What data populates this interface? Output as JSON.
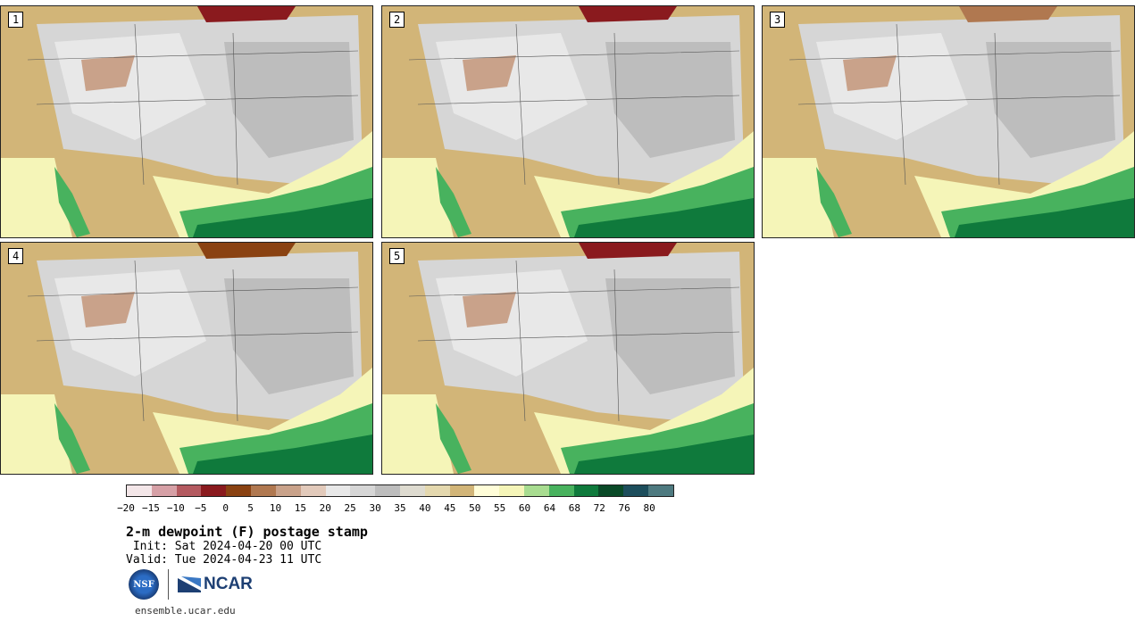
{
  "panels": [
    {
      "label": "1"
    },
    {
      "label": "2"
    },
    {
      "label": "3"
    },
    {
      "label": "4"
    },
    {
      "label": "5"
    }
  ],
  "colorbar": {
    "colors": [
      "#f3e6e8",
      "#d6a0a6",
      "#b45a60",
      "#8a1a1e",
      "#8a4212",
      "#b07850",
      "#c9a28a",
      "#e2cabb",
      "#e8e8e8",
      "#d6d6d6",
      "#bdbdbd",
      "#dedbd0",
      "#e4d8ae",
      "#d2b578",
      "#fffdd8",
      "#f5f5b8",
      "#a8dc90",
      "#48b25e",
      "#0f7a3c",
      "#0a4a28",
      "#1d4e5c",
      "#4e7a80"
    ],
    "tick_labels": [
      "−20",
      "−15",
      "−10",
      "−5",
      "0",
      "5",
      "10",
      "15",
      "20",
      "25",
      "30",
      "35",
      "40",
      "45",
      "50",
      "55",
      "60",
      "64",
      "68",
      "72",
      "76",
      "80"
    ]
  },
  "title": "2-m dewpoint (F) postage stamp",
  "init": " Init: Sat 2024-04-20 00 UTC",
  "valid": "Valid: Tue 2024-04-23 11 UTC",
  "logos": {
    "nsf": "NSF",
    "ncar": "NCAR"
  },
  "site": "ensemble.ucar.edu"
}
